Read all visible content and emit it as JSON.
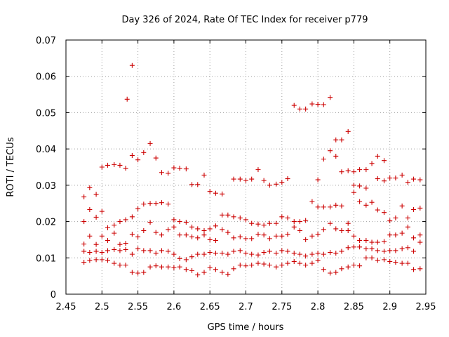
{
  "chart_data": {
    "type": "scatter",
    "title": "Day 326 of 2024, Rate Of TEC Index for receiver p779",
    "xlabel": "GPS time / hours",
    "ylabel": "ROTI / TECUs",
    "xlim": [
      2.45,
      2.95
    ],
    "ylim": [
      0,
      0.07
    ],
    "xticks": [
      "2.45",
      "2.5",
      "2.55",
      "2.6",
      "2.65",
      "2.7",
      "2.75",
      "2.8",
      "2.85",
      "2.9",
      "2.95"
    ],
    "yticks": [
      "0",
      "0.01",
      "0.02",
      "0.03",
      "0.04",
      "0.05",
      "0.06",
      "0.07"
    ],
    "grid": true,
    "marker": "plus",
    "color": "#cc0000",
    "series": [
      {
        "name": "p779",
        "points": [
          [
            2.475,
            0.0268
          ],
          [
            2.483,
            0.0293
          ],
          [
            2.492,
            0.0275
          ],
          [
            2.5,
            0.035
          ],
          [
            2.508,
            0.0355
          ],
          [
            2.517,
            0.0357
          ],
          [
            2.525,
            0.0355
          ],
          [
            2.533,
            0.0347
          ],
          [
            2.542,
            0.0382
          ],
          [
            2.55,
            0.037
          ],
          [
            2.558,
            0.039
          ],
          [
            2.567,
            0.0415
          ],
          [
            2.575,
            0.0375
          ],
          [
            2.583,
            0.0335
          ],
          [
            2.592,
            0.0333
          ],
          [
            2.6,
            0.0348
          ],
          [
            2.608,
            0.0347
          ],
          [
            2.617,
            0.0345
          ],
          [
            2.625,
            0.0302
          ],
          [
            2.633,
            0.0302
          ],
          [
            2.642,
            0.0328
          ],
          [
            2.65,
            0.0283
          ],
          [
            2.658,
            0.0278
          ],
          [
            2.667,
            0.0276
          ],
          [
            2.683,
            0.0317
          ],
          [
            2.692,
            0.0317
          ],
          [
            2.7,
            0.0313
          ],
          [
            2.708,
            0.0317
          ],
          [
            2.717,
            0.0343
          ],
          [
            2.725,
            0.0313
          ],
          [
            2.733,
            0.03
          ],
          [
            2.742,
            0.0303
          ],
          [
            2.75,
            0.0308
          ],
          [
            2.758,
            0.0318
          ],
          [
            2.767,
            0.052
          ],
          [
            2.775,
            0.051
          ],
          [
            2.783,
            0.051
          ],
          [
            2.792,
            0.0524
          ],
          [
            2.8,
            0.0523
          ],
          [
            2.808,
            0.0522
          ],
          [
            2.817,
            0.0542
          ],
          [
            2.825,
            0.0425
          ],
          [
            2.833,
            0.0425
          ],
          [
            2.842,
            0.0448
          ],
          [
            2.817,
            0.0395
          ],
          [
            2.825,
            0.038
          ],
          [
            2.808,
            0.0372
          ],
          [
            2.833,
            0.0337
          ],
          [
            2.842,
            0.034
          ],
          [
            2.85,
            0.0337
          ],
          [
            2.858,
            0.0343
          ],
          [
            2.867,
            0.0343
          ],
          [
            2.875,
            0.036
          ],
          [
            2.883,
            0.038
          ],
          [
            2.892,
            0.0368
          ],
          [
            2.9,
            0.032
          ],
          [
            2.908,
            0.032
          ],
          [
            2.917,
            0.0328
          ],
          [
            2.925,
            0.0308
          ],
          [
            2.933,
            0.0317
          ],
          [
            2.942,
            0.0315
          ],
          [
            2.8,
            0.0315
          ],
          [
            2.85,
            0.03
          ],
          [
            2.858,
            0.0298
          ],
          [
            2.867,
            0.0292
          ],
          [
            2.883,
            0.0318
          ],
          [
            2.892,
            0.0312
          ],
          [
            2.535,
            0.0537
          ],
          [
            2.542,
            0.063
          ],
          [
            2.475,
            0.02
          ],
          [
            2.483,
            0.0233
          ],
          [
            2.492,
            0.0212
          ],
          [
            2.5,
            0.0228
          ],
          [
            2.508,
            0.0183
          ],
          [
            2.517,
            0.019
          ],
          [
            2.525,
            0.02
          ],
          [
            2.533,
            0.0205
          ],
          [
            2.542,
            0.0213
          ],
          [
            2.55,
            0.0235
          ],
          [
            2.558,
            0.0248
          ],
          [
            2.567,
            0.025
          ],
          [
            2.575,
            0.025
          ],
          [
            2.583,
            0.0252
          ],
          [
            2.592,
            0.0248
          ],
          [
            2.6,
            0.0205
          ],
          [
            2.608,
            0.02
          ],
          [
            2.617,
            0.0198
          ],
          [
            2.625,
            0.0185
          ],
          [
            2.633,
            0.018
          ],
          [
            2.642,
            0.0175
          ],
          [
            2.65,
            0.018
          ],
          [
            2.658,
            0.0188
          ],
          [
            2.667,
            0.0218
          ],
          [
            2.675,
            0.0218
          ],
          [
            2.683,
            0.0213
          ],
          [
            2.692,
            0.021
          ],
          [
            2.7,
            0.0205
          ],
          [
            2.708,
            0.0195
          ],
          [
            2.717,
            0.0193
          ],
          [
            2.725,
            0.019
          ],
          [
            2.733,
            0.0195
          ],
          [
            2.742,
            0.0195
          ],
          [
            2.75,
            0.0213
          ],
          [
            2.758,
            0.021
          ],
          [
            2.767,
            0.02
          ],
          [
            2.775,
            0.02
          ],
          [
            2.783,
            0.0203
          ],
          [
            2.792,
            0.0255
          ],
          [
            2.8,
            0.024
          ],
          [
            2.808,
            0.024
          ],
          [
            2.817,
            0.024
          ],
          [
            2.825,
            0.0245
          ],
          [
            2.833,
            0.0243
          ],
          [
            2.842,
            0.0195
          ],
          [
            2.85,
            0.028
          ],
          [
            2.858,
            0.0255
          ],
          [
            2.867,
            0.0245
          ],
          [
            2.875,
            0.0253
          ],
          [
            2.883,
            0.0232
          ],
          [
            2.892,
            0.0225
          ],
          [
            2.9,
            0.0202
          ],
          [
            2.908,
            0.021
          ],
          [
            2.917,
            0.0243
          ],
          [
            2.925,
            0.021
          ],
          [
            2.933,
            0.0233
          ],
          [
            2.942,
            0.0237
          ],
          [
            2.475,
            0.0138
          ],
          [
            2.483,
            0.016
          ],
          [
            2.492,
            0.0137
          ],
          [
            2.5,
            0.016
          ],
          [
            2.508,
            0.0148
          ],
          [
            2.517,
            0.0168
          ],
          [
            2.525,
            0.0137
          ],
          [
            2.533,
            0.014
          ],
          [
            2.542,
            0.0165
          ],
          [
            2.55,
            0.0158
          ],
          [
            2.558,
            0.0175
          ],
          [
            2.567,
            0.0198
          ],
          [
            2.575,
            0.017
          ],
          [
            2.583,
            0.0163
          ],
          [
            2.592,
            0.0178
          ],
          [
            2.6,
            0.0185
          ],
          [
            2.608,
            0.0163
          ],
          [
            2.617,
            0.0163
          ],
          [
            2.625,
            0.0158
          ],
          [
            2.633,
            0.0155
          ],
          [
            2.642,
            0.0163
          ],
          [
            2.65,
            0.015
          ],
          [
            2.658,
            0.0148
          ],
          [
            2.667,
            0.0178
          ],
          [
            2.675,
            0.017
          ],
          [
            2.683,
            0.0155
          ],
          [
            2.692,
            0.0158
          ],
          [
            2.7,
            0.0153
          ],
          [
            2.708,
            0.0153
          ],
          [
            2.717,
            0.0165
          ],
          [
            2.725,
            0.0163
          ],
          [
            2.733,
            0.0153
          ],
          [
            2.742,
            0.016
          ],
          [
            2.75,
            0.016
          ],
          [
            2.758,
            0.0165
          ],
          [
            2.767,
            0.0185
          ],
          [
            2.775,
            0.0175
          ],
          [
            2.783,
            0.015
          ],
          [
            2.792,
            0.016
          ],
          [
            2.8,
            0.0165
          ],
          [
            2.808,
            0.0178
          ],
          [
            2.817,
            0.0195
          ],
          [
            2.825,
            0.018
          ],
          [
            2.833,
            0.0175
          ],
          [
            2.842,
            0.0175
          ],
          [
            2.85,
            0.016
          ],
          [
            2.858,
            0.0148
          ],
          [
            2.867,
            0.0148
          ],
          [
            2.875,
            0.0143
          ],
          [
            2.883,
            0.0143
          ],
          [
            2.892,
            0.0145
          ],
          [
            2.9,
            0.0163
          ],
          [
            2.908,
            0.0163
          ],
          [
            2.917,
            0.0168
          ],
          [
            2.925,
            0.0185
          ],
          [
            2.933,
            0.0155
          ],
          [
            2.942,
            0.0163
          ],
          [
            2.475,
            0.0118
          ],
          [
            2.483,
            0.0115
          ],
          [
            2.492,
            0.0118
          ],
          [
            2.5,
            0.0115
          ],
          [
            2.508,
            0.012
          ],
          [
            2.517,
            0.0123
          ],
          [
            2.525,
            0.012
          ],
          [
            2.533,
            0.0123
          ],
          [
            2.542,
            0.011
          ],
          [
            2.55,
            0.0125
          ],
          [
            2.558,
            0.012
          ],
          [
            2.567,
            0.012
          ],
          [
            2.575,
            0.0113
          ],
          [
            2.583,
            0.012
          ],
          [
            2.592,
            0.0118
          ],
          [
            2.6,
            0.011
          ],
          [
            2.608,
            0.0098
          ],
          [
            2.617,
            0.0095
          ],
          [
            2.625,
            0.0103
          ],
          [
            2.633,
            0.011
          ],
          [
            2.642,
            0.011
          ],
          [
            2.65,
            0.0115
          ],
          [
            2.658,
            0.0113
          ],
          [
            2.667,
            0.0113
          ],
          [
            2.675,
            0.011
          ],
          [
            2.683,
            0.0118
          ],
          [
            2.692,
            0.012
          ],
          [
            2.7,
            0.0113
          ],
          [
            2.708,
            0.011
          ],
          [
            2.717,
            0.0108
          ],
          [
            2.725,
            0.0115
          ],
          [
            2.733,
            0.0118
          ],
          [
            2.742,
            0.0113
          ],
          [
            2.75,
            0.012
          ],
          [
            2.758,
            0.0118
          ],
          [
            2.767,
            0.0113
          ],
          [
            2.775,
            0.011
          ],
          [
            2.783,
            0.0105
          ],
          [
            2.792,
            0.011
          ],
          [
            2.8,
            0.0113
          ],
          [
            2.808,
            0.011
          ],
          [
            2.817,
            0.0115
          ],
          [
            2.825,
            0.0113
          ],
          [
            2.833,
            0.0118
          ],
          [
            2.842,
            0.0128
          ],
          [
            2.85,
            0.013
          ],
          [
            2.858,
            0.013
          ],
          [
            2.867,
            0.0125
          ],
          [
            2.875,
            0.0125
          ],
          [
            2.883,
            0.012
          ],
          [
            2.892,
            0.0118
          ],
          [
            2.9,
            0.012
          ],
          [
            2.908,
            0.012
          ],
          [
            2.917,
            0.0125
          ],
          [
            2.925,
            0.0128
          ],
          [
            2.933,
            0.0118
          ],
          [
            2.942,
            0.0143
          ],
          [
            2.475,
            0.0088
          ],
          [
            2.483,
            0.0093
          ],
          [
            2.492,
            0.0095
          ],
          [
            2.5,
            0.0095
          ],
          [
            2.508,
            0.0093
          ],
          [
            2.517,
            0.0085
          ],
          [
            2.525,
            0.008
          ],
          [
            2.533,
            0.008
          ],
          [
            2.542,
            0.006
          ],
          [
            2.55,
            0.0058
          ],
          [
            2.558,
            0.006
          ],
          [
            2.567,
            0.0075
          ],
          [
            2.575,
            0.0078
          ],
          [
            2.583,
            0.0075
          ],
          [
            2.592,
            0.0075
          ],
          [
            2.6,
            0.0073
          ],
          [
            2.608,
            0.0075
          ],
          [
            2.617,
            0.0068
          ],
          [
            2.625,
            0.0065
          ],
          [
            2.633,
            0.0053
          ],
          [
            2.642,
            0.006
          ],
          [
            2.65,
            0.0073
          ],
          [
            2.658,
            0.0068
          ],
          [
            2.667,
            0.006
          ],
          [
            2.675,
            0.0055
          ],
          [
            2.683,
            0.007
          ],
          [
            2.692,
            0.008
          ],
          [
            2.7,
            0.0078
          ],
          [
            2.708,
            0.008
          ],
          [
            2.717,
            0.0085
          ],
          [
            2.725,
            0.0083
          ],
          [
            2.733,
            0.008
          ],
          [
            2.742,
            0.0075
          ],
          [
            2.75,
            0.008
          ],
          [
            2.758,
            0.0085
          ],
          [
            2.767,
            0.009
          ],
          [
            2.775,
            0.0085
          ],
          [
            2.783,
            0.008
          ],
          [
            2.792,
            0.0085
          ],
          [
            2.8,
            0.0093
          ],
          [
            2.808,
            0.0068
          ],
          [
            2.817,
            0.0058
          ],
          [
            2.825,
            0.006
          ],
          [
            2.833,
            0.007
          ],
          [
            2.842,
            0.0075
          ],
          [
            2.85,
            0.008
          ],
          [
            2.858,
            0.0078
          ],
          [
            2.867,
            0.01
          ],
          [
            2.875,
            0.01
          ],
          [
            2.883,
            0.0093
          ],
          [
            2.892,
            0.0095
          ],
          [
            2.9,
            0.009
          ],
          [
            2.908,
            0.0088
          ],
          [
            2.917,
            0.0085
          ],
          [
            2.925,
            0.0085
          ],
          [
            2.933,
            0.0068
          ],
          [
            2.942,
            0.007
          ]
        ]
      }
    ]
  }
}
